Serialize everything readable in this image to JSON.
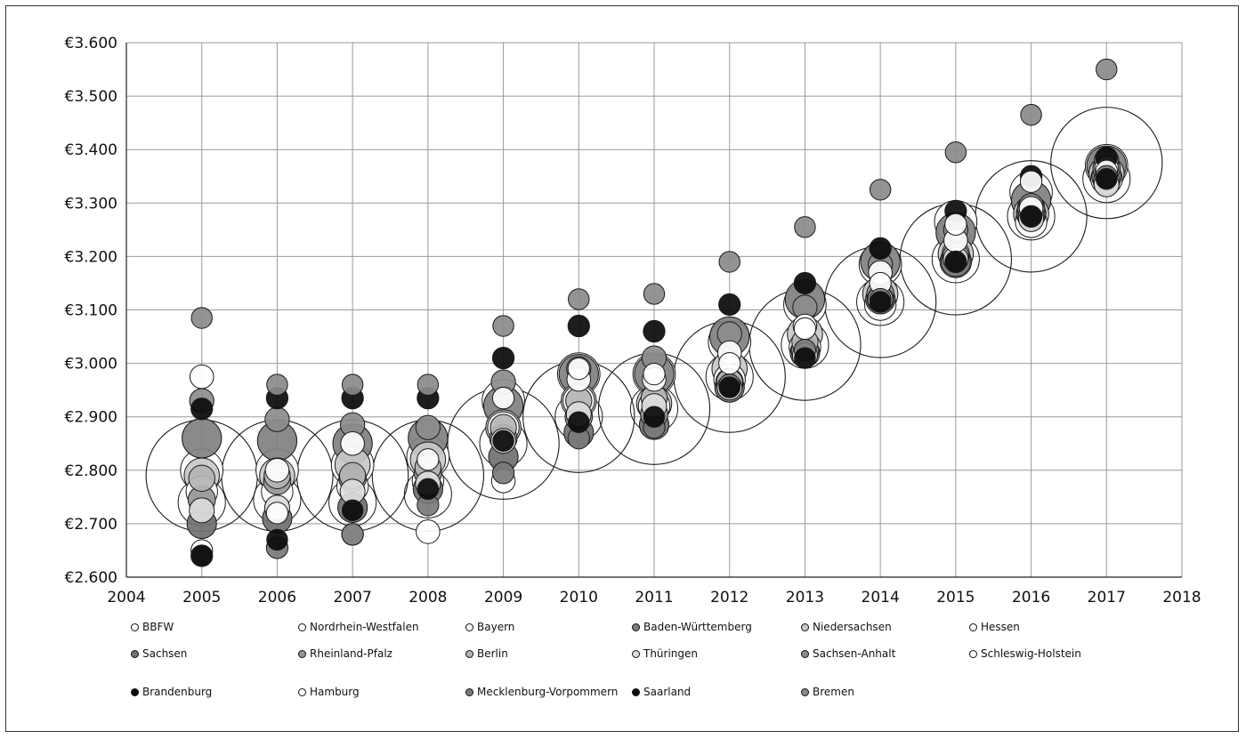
{
  "chart_data": {
    "type": "scatter",
    "subtype": "bubble",
    "title": "",
    "xlabel": "",
    "ylabel": "",
    "xlim": [
      2004,
      2018
    ],
    "ylim": [
      2600,
      3600
    ],
    "x_ticks": [
      2004,
      2005,
      2006,
      2007,
      2008,
      2009,
      2010,
      2011,
      2012,
      2013,
      2014,
      2015,
      2016,
      2017,
      2018
    ],
    "y_ticks": [
      2600,
      2700,
      2800,
      2900,
      3000,
      3100,
      3200,
      3300,
      3400,
      3500,
      3600
    ],
    "y_tick_labels": [
      "€2.600",
      "€2.700",
      "€2.800",
      "€2.900",
      "€3.000",
      "€3.100",
      "€3.200",
      "€3.300",
      "€3.400",
      "€3.500",
      "€3.600"
    ],
    "grid": true,
    "legend_position": "bottom",
    "series": [
      {
        "name": "BBFW",
        "fill": "#ffffff",
        "size": 20,
        "x": [
          2005,
          2006,
          2007,
          2008,
          2009,
          2010,
          2011,
          2012,
          2013,
          2014,
          2015,
          2016,
          2017
        ],
        "y": [
          2790,
          2790,
          2790,
          2790,
          2850,
          2900,
          2915,
          2975,
          3035,
          3115,
          3195,
          3275,
          3375
        ]
      },
      {
        "name": "Nordrhein-Westfalen",
        "fill": "#ffffff",
        "size": 3.6,
        "x": [
          2005,
          2006,
          2007,
          2008,
          2009,
          2010,
          2011,
          2012,
          2013,
          2014,
          2015,
          2016,
          2017
        ],
        "y": [
          2740,
          2745,
          2740,
          2755,
          2850,
          2900,
          2915,
          2975,
          3035,
          3115,
          3195,
          3275,
          3345
        ]
      },
      {
        "name": "Bayern",
        "fill": "#ffffff",
        "size": 2.9,
        "x": [
          2005,
          2006,
          2007,
          2008,
          2009,
          2010,
          2011,
          2012,
          2013,
          2014,
          2015,
          2016,
          2017
        ],
        "y": [
          2800,
          2800,
          2810,
          2825,
          2930,
          2980,
          2980,
          3040,
          3110,
          3185,
          3265,
          3320,
          3370
        ]
      },
      {
        "name": "Baden-Württemberg",
        "fill": "#808080",
        "size": 2.5,
        "x": [
          2005,
          2006,
          2007,
          2008,
          2009,
          2010,
          2011,
          2012,
          2013,
          2014,
          2015,
          2016,
          2017
        ],
        "y": [
          2860,
          2855,
          2850,
          2860,
          2920,
          2980,
          2980,
          3050,
          3120,
          3190,
          3245,
          3305,
          3370
        ]
      },
      {
        "name": "Niedersachsen",
        "fill": "#c8c8c8",
        "size": 2.0,
        "x": [
          2005,
          2006,
          2007,
          2008,
          2009,
          2010,
          2011,
          2012,
          2013,
          2014,
          2015,
          2016,
          2017
        ],
        "y": [
          2790,
          2790,
          2810,
          2820,
          2880,
          2930,
          2925,
          2990,
          3055,
          3130,
          3205,
          3280,
          3355
        ]
      },
      {
        "name": "Hessen",
        "fill": "#ffffff",
        "size": 1.6,
        "x": [
          2005,
          2006,
          2007,
          2008,
          2009,
          2010,
          2011,
          2012,
          2013,
          2014,
          2015,
          2016,
          2017
        ],
        "y": [
          2760,
          2760,
          2770,
          2780,
          2880,
          2930,
          2920,
          2970,
          3030,
          3110,
          3190,
          3265,
          3345
        ]
      },
      {
        "name": "Sachsen",
        "fill": "#707070",
        "size": 1.4,
        "x": [
          2005,
          2006,
          2007,
          2008,
          2009,
          2010,
          2011,
          2012,
          2013,
          2014,
          2015,
          2016,
          2017
        ],
        "y": [
          2700,
          2710,
          2730,
          2765,
          2825,
          2870,
          2885,
          2955,
          3020,
          3120,
          3190,
          3280,
          3350
        ]
      },
      {
        "name": "Rheinland-Pfalz",
        "fill": "#969696",
        "size": 1.2,
        "x": [
          2005,
          2006,
          2007,
          2008,
          2009,
          2010,
          2011,
          2012,
          2013,
          2014,
          2015,
          2016,
          2017
        ],
        "y": [
          2745,
          2780,
          2785,
          2795,
          2860,
          2900,
          2905,
          2965,
          3025,
          3130,
          3205,
          3290,
          3365
        ]
      },
      {
        "name": "Berlin",
        "fill": "#b4b4b4",
        "size": 1.1,
        "x": [
          2005,
          2006,
          2007,
          2008,
          2009,
          2010,
          2011,
          2012,
          2013,
          2014,
          2015,
          2016,
          2017
        ],
        "y": [
          2785,
          2790,
          2790,
          2805,
          2880,
          2930,
          2935,
          2965,
          3040,
          3120,
          3200,
          3275,
          3340
        ]
      },
      {
        "name": "Thüringen",
        "fill": "#dcdcdc",
        "size": 1.0,
        "x": [
          2005,
          2006,
          2007,
          2008,
          2009,
          2010,
          2011,
          2012,
          2013,
          2014,
          2015,
          2016,
          2017
        ],
        "y": [
          2725,
          2730,
          2760,
          2775,
          2855,
          2905,
          2920,
          2955,
          3015,
          3120,
          3195,
          3270,
          3335
        ]
      },
      {
        "name": "Sachsen-Anhalt",
        "fill": "#8c8c8c",
        "size": 0.95,
        "x": [
          2005,
          2006,
          2007,
          2008,
          2009,
          2010,
          2011,
          2012,
          2013,
          2014,
          2015,
          2016,
          2017
        ],
        "y": [
          2930,
          2895,
          2885,
          2880,
          2965,
          2990,
          3010,
          3055,
          3105,
          3185,
          3250,
          3295,
          3380
        ]
      },
      {
        "name": "Schleswig-Holstein",
        "fill": "#ffffff",
        "size": 0.9,
        "x": [
          2005,
          2006,
          2007,
          2008,
          2009,
          2010,
          2011,
          2012,
          2013,
          2014,
          2015,
          2016,
          2017
        ],
        "y": [
          2975,
          2800,
          2850,
          2685,
          2780,
          2970,
          2970,
          3020,
          3070,
          3170,
          3230,
          3290,
          3365
        ]
      },
      {
        "name": "Brandenburg",
        "fill": "#0a0a0a",
        "size": 0.75,
        "x": [
          2005,
          2006,
          2007,
          2008,
          2009,
          2010,
          2011,
          2012,
          2013,
          2014,
          2015,
          2016,
          2017
        ],
        "y": [
          2915,
          2935,
          2935,
          2935,
          3010,
          3070,
          3060,
          3110,
          3150,
          3215,
          3285,
          3350,
          3385
        ]
      },
      {
        "name": "Hamburg",
        "fill": "#ffffff",
        "size": 0.75,
        "x": [
          2005,
          2006,
          2007,
          2008,
          2009,
          2010,
          2011,
          2012,
          2013,
          2014,
          2015,
          2016,
          2017
        ],
        "y": [
          2650,
          2720,
          2680,
          2820,
          2935,
          2990,
          2980,
          3000,
          3065,
          3150,
          3260,
          3340,
          3360
        ]
      },
      {
        "name": "Mecklenburg-Vorpommern",
        "fill": "#7a7a7a",
        "size": 0.75,
        "x": [
          2005,
          2006,
          2007,
          2008,
          2009,
          2010,
          2011,
          2012,
          2013,
          2014,
          2015,
          2016,
          2017
        ],
        "y": [
          2640,
          2655,
          2680,
          2735,
          2795,
          2860,
          2880,
          2960,
          3025,
          3120,
          3190,
          3275,
          3350
        ]
      },
      {
        "name": "Saarland",
        "fill": "#0a0a0a",
        "size": 0.7,
        "x": [
          2005,
          2006,
          2007,
          2008,
          2009,
          2010,
          2011,
          2012,
          2013,
          2014,
          2015,
          2016,
          2017
        ],
        "y": [
          2640,
          2670,
          2725,
          2765,
          2855,
          2890,
          2900,
          2955,
          3010,
          3115,
          3190,
          3275,
          3345
        ]
      },
      {
        "name": "Bremen",
        "fill": "#8a8a8a",
        "size": 0.7,
        "x": [
          2005,
          2006,
          2007,
          2008,
          2009,
          2010,
          2011,
          2012,
          2013,
          2014,
          2015,
          2016,
          2017
        ],
        "y": [
          3085,
          2960,
          2960,
          2960,
          3070,
          3120,
          3130,
          3190,
          3255,
          3325,
          3395,
          3465,
          3550
        ]
      }
    ]
  }
}
